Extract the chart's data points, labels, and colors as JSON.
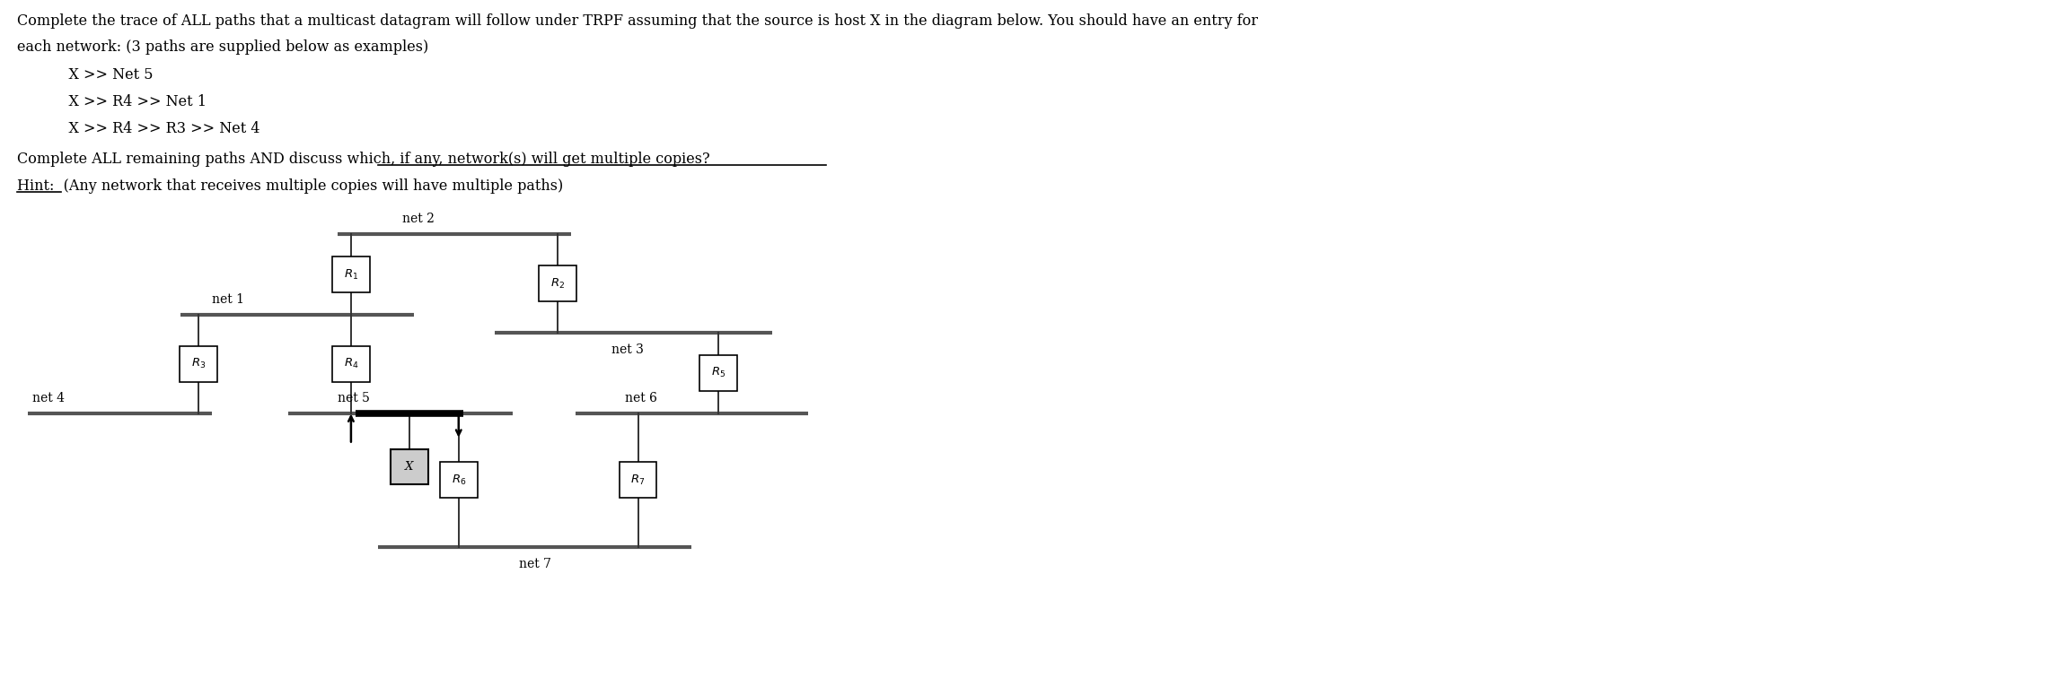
{
  "line1": "Complete the trace of ALL paths that a multicast datagram will follow under TRPF assuming that the source is host X in the diagram below. You should have an entry for",
  "line2": "each network: (3 paths are supplied below as examples)",
  "ex1": "    X >> Net 5",
  "ex2": "    X >> R4 >> Net 1",
  "ex3": "    X >> R4 >> R3 >> Net 4",
  "q_pre": "Complete ALL remaining paths AND discuss ",
  "q_underline": "which, if any, network(s) will get multiple copies?",
  "hint_underline": "Hint:",
  "hint_rest": "  (Any network that receives multiple copies will have multiple paths)",
  "bg_color": "#ffffff",
  "text_color": "#000000",
  "net2_label": "net 2",
  "net1_label": "net 1",
  "net3_label": "net 3",
  "net4_label": "net 4",
  "net5_label": "net 5",
  "net6_label": "net 6",
  "net7_label": "net 7"
}
